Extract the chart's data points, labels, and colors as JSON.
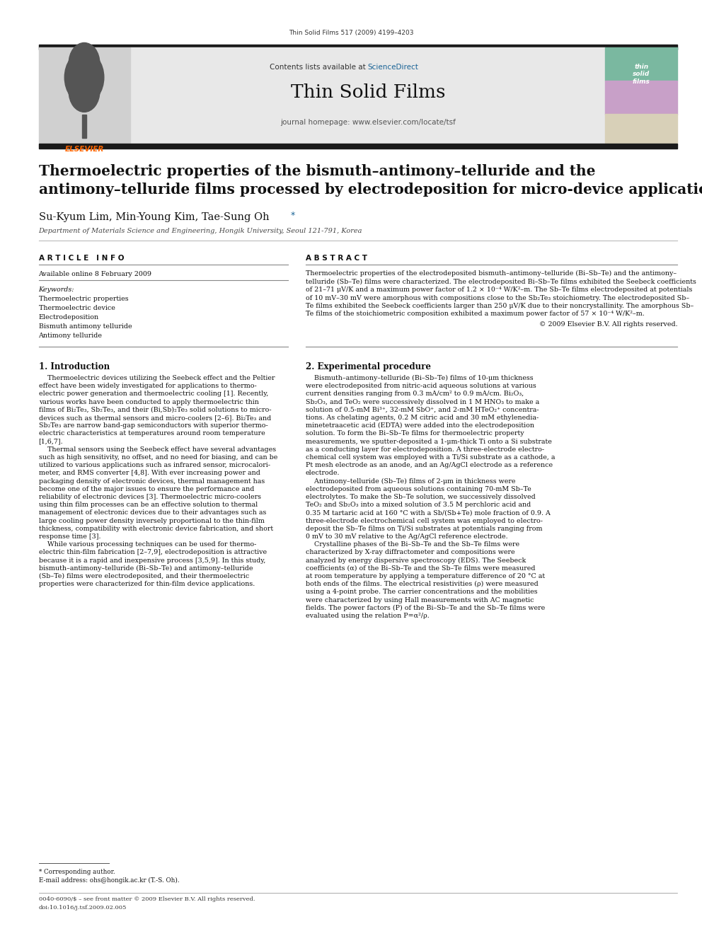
{
  "page_width": 9.92,
  "page_height": 13.23,
  "bg_color": "#ffffff",
  "journal_ref": "Thin Solid Films 517 (2009) 4199–4203",
  "header_bg": "#e8e8e8",
  "header_text1": "Contents lists available at ",
  "header_link": "ScienceDirect",
  "header_link_color": "#1a6496",
  "journal_title": "Thin Solid Films",
  "journal_url": "journal homepage: www.elsevier.com/locate/tsf",
  "dark_bar_color": "#1a1a1a",
  "paper_title_line1": "Thermoelectric properties of the bismuth–antimony–telluride and the",
  "paper_title_line2": "antimony–telluride films processed by electrodeposition for micro-device applications",
  "authors": "Su-Kyum Lim, Min-Young Kim, Tae-Sung Oh",
  "authors_star": " *",
  "affiliation": "Department of Materials Science and Engineering, Hongik University, Seoul 121-791, Korea",
  "article_info_title": "A R T I C L E   I N F O",
  "abstract_title": "A B S T R A C T",
  "available_online": "Available online 8 February 2009",
  "keywords_label": "Keywords:",
  "keywords": [
    "Thermoelectric properties",
    "Thermoelectric device",
    "Electrodeposition",
    "Bismuth antimony telluride",
    "Antimony telluride"
  ],
  "abstract_copyright": "© 2009 Elsevier B.V. All rights reserved.",
  "intro_title": "1. Introduction",
  "exp_title": "2. Experimental procedure",
  "footnote_star": "* Corresponding author.",
  "footnote_email": "E-mail address: ohs@hongik.ac.kr (T.-S. Oh).",
  "footer_line1": "0040-6090/$ – see front matter © 2009 Elsevier B.V. All rights reserved.",
  "footer_line2": "doi:10.1016/j.tsf.2009.02.005",
  "elsevier_color": "#ff6600",
  "sciencedirect_color": "#1a6496",
  "body_fontsize": 6.8,
  "title_fontsize": 14.5,
  "section_title_fontsize": 8.5,
  "col_divider": 0.42,
  "abstract_lines": [
    "Thermoelectric properties of the electrodeposited bismuth–antimony–telluride (Bi–Sb–Te) and the antimony–",
    "telluride (Sb–Te) films were characterized. The electrodeposited Bi–Sb–Te films exhibited the Seebeck coefficients",
    "of 21–71 μV/K and a maximum power factor of 1.2 × 10⁻⁴ W/K²–m. The Sb–Te films electrodeposited at potentials",
    "of 10 mV–30 mV were amorphous with compositions close to the Sb₂Te₃ stoichiometry. The electrodeposited Sb–",
    "Te films exhibited the Seebeck coefficients larger than 250 μV/K due to their noncrystallinity. The amorphous Sb–",
    "Te films of the stoichiometric composition exhibited a maximum power factor of 57 × 10⁻⁴ W/K²–m."
  ],
  "intro_paras": [
    "    Thermoelectric devices utilizing the Seebeck effect and the Peltier",
    "effect have been widely investigated for applications to thermo-",
    "electric power generation and thermoelectric cooling [1]. Recently,",
    "various works have been conducted to apply thermoelectric thin",
    "films of Bi₂Te₃, Sb₂Te₃, and their (Bi,Sb)₂Te₃ solid solutions to micro-",
    "devices such as thermal sensors and micro-coolers [2–6]. Bi₂Te₃ and",
    "Sb₂Te₃ are narrow band-gap semiconductors with superior thermo-",
    "electric characteristics at temperatures around room temperature",
    "[1,6,7].",
    "    Thermal sensors using the Seebeck effect have several advantages",
    "such as high sensitivity, no offset, and no need for biasing, and can be",
    "utilized to various applications such as infrared sensor, microcalori-",
    "meter, and RMS converter [4,8]. With ever increasing power and",
    "packaging density of electronic devices, thermal management has",
    "become one of the major issues to ensure the performance and",
    "reliability of electronic devices [3]. Thermoelectric micro-coolers",
    "using thin film processes can be an effective solution to thermal",
    "management of electronic devices due to their advantages such as",
    "large cooling power density inversely proportional to the thin-film",
    "thickness, compatibility with electronic device fabrication, and short",
    "response time [3].",
    "    While various processing techniques can be used for thermo-",
    "electric thin-film fabrication [2–7,9], electrodeposition is attractive",
    "because it is a rapid and inexpensive process [3,5,9]. In this study,",
    "bismuth–antimony–telluride (Bi–Sb–Te) and antimony–telluride",
    "(Sb–Te) films were electrodeposited, and their thermoelectric",
    "properties were characterized for thin-film device applications."
  ],
  "exp_paras": [
    "    Bismuth–antimony–telluride (Bi–Sb–Te) films of 10-μm thickness",
    "were electrodeposited from nitric-acid aqueous solutions at various",
    "current densities ranging from 0.3 mA/cm² to 0.9 mA/cm. Bi₂O₃,",
    "Sb₂O₃, and TeO₂ were successively dissolved in 1 M HNO₃ to make a",
    "solution of 0.5-mM Bi³⁺, 32-mM SbO⁺, and 2-mM HTeO₂⁺ concentra-",
    "tions. As chelating agents, 0.2 M citric acid and 30 mM ethylenedia-",
    "minetetraacetic acid (EDTA) were added into the electrodeposition",
    "solution. To form the Bi–Sb–Te films for thermoelectric property",
    "measurements, we sputter-deposited a 1-μm-thick Ti onto a Si substrate",
    "as a conducting layer for electrodeposition. A three-electrode electro-",
    "chemical cell system was employed with a Ti/Si substrate as a cathode, a",
    "Pt mesh electrode as an anode, and an Ag/AgCl electrode as a reference",
    "electrode.",
    "    Antimony–telluride (Sb–Te) films of 2-μm in thickness were",
    "electrodeposited from aqueous solutions containing 70-mM Sb–Te",
    "electrolytes. To make the Sb–Te solution, we successively dissolved",
    "TeO₂ and Sb₂O₃ into a mixed solution of 3.5 M perchloric acid and",
    "0.35 M tartaric acid at 160 °C with a Sb/(Sb+Te) mole fraction of 0.9. A",
    "three-electrode electrochemical cell system was employed to electro-",
    "deposit the Sb–Te films on Ti/Si substrates at potentials ranging from",
    "0 mV to 30 mV relative to the Ag/AgCl reference electrode.",
    "    Crystalline phases of the Bi–Sb–Te and the Sb–Te films were",
    "characterized by X-ray diffractometer and compositions were",
    "analyzed by energy dispersive spectroscopy (EDS). The Seebeck",
    "coefficients (α) of the Bi–Sb–Te and the Sb–Te films were measured",
    "at room temperature by applying a temperature difference of 20 °C at",
    "both ends of the films. The electrical resistivities (ρ) were measured",
    "using a 4-point probe. The carrier concentrations and the mobilities",
    "were characterized by using Hall measurements with AC magnetic",
    "fields. The power factors (P) of the Bi–Sb–Te and the Sb–Te films were",
    "evaluated using the relation P=α²/ρ."
  ]
}
